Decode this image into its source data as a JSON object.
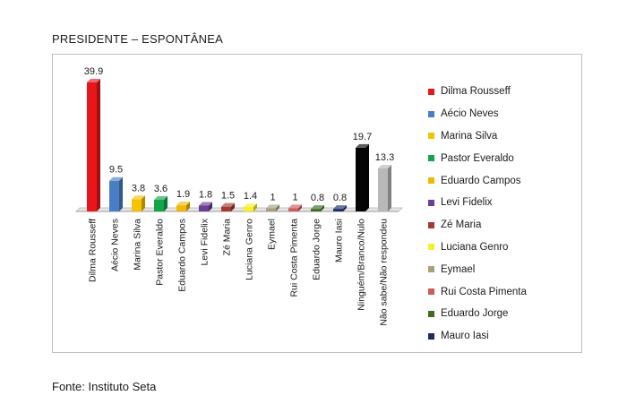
{
  "title": "PRESIDENTE – ESPONTÂNEA",
  "source": "Fonte: Instituto Seta",
  "chart_data": {
    "type": "bar",
    "title": "PRESIDENTE – ESPONTÂNEA",
    "xlabel": "",
    "ylabel": "",
    "ylim": [
      0,
      40
    ],
    "grid": false,
    "legend_position": "right",
    "categories": [
      "Dilma Rousseff",
      "Aécio Neves",
      "Marina Silva",
      "Pastor Everaldo",
      "Eduardo Campos",
      "Levi Fidelix",
      "Zé Maria",
      "Luciana Genro",
      "Eymael",
      "Rui Costa Pimenta",
      "Eduardo Jorge",
      "Mauro Iasi",
      "Ninguém/Branco/Nulo",
      "Não sabe/Não respondeu"
    ],
    "values": [
      39.9,
      9.5,
      3.8,
      3.6,
      1.9,
      1.8,
      1.5,
      1.4,
      1,
      1,
      0.8,
      0.8,
      19.7,
      13.3
    ],
    "value_labels": [
      "39.9",
      "9.5",
      "3.8",
      "3.6",
      "1.9",
      "1.8",
      "1.5",
      "1.4",
      "1",
      "1",
      "0.8",
      "0.8",
      "19.7",
      "13.3"
    ],
    "colors": [
      "#e8161b",
      "#4a7ec4",
      "#f5c400",
      "#12a54a",
      "#f2b705",
      "#6a3d97",
      "#a23b35",
      "#f7ef2b",
      "#a8a07c",
      "#cf5a5a",
      "#416b22",
      "#1d2a6a",
      "#050505",
      "#b8b8b8"
    ],
    "legend": [
      {
        "name": "Dilma Rousseff",
        "color": "#e8161b"
      },
      {
        "name": "Aécio Neves",
        "color": "#4a7ec4"
      },
      {
        "name": "Marina Silva",
        "color": "#f5c400"
      },
      {
        "name": "Pastor Everaldo",
        "color": "#12a54a"
      },
      {
        "name": "Eduardo Campos",
        "color": "#f2b705"
      },
      {
        "name": "Levi Fidelix",
        "color": "#6a3d97"
      },
      {
        "name": "Zé Maria",
        "color": "#a23b35"
      },
      {
        "name": "Luciana Genro",
        "color": "#f7ef2b"
      },
      {
        "name": "Eymael",
        "color": "#a8a07c"
      },
      {
        "name": "Rui Costa Pimenta",
        "color": "#cf5a5a"
      },
      {
        "name": "Eduardo Jorge",
        "color": "#416b22"
      },
      {
        "name": "Mauro Iasi",
        "color": "#1d2a6a"
      }
    ]
  }
}
